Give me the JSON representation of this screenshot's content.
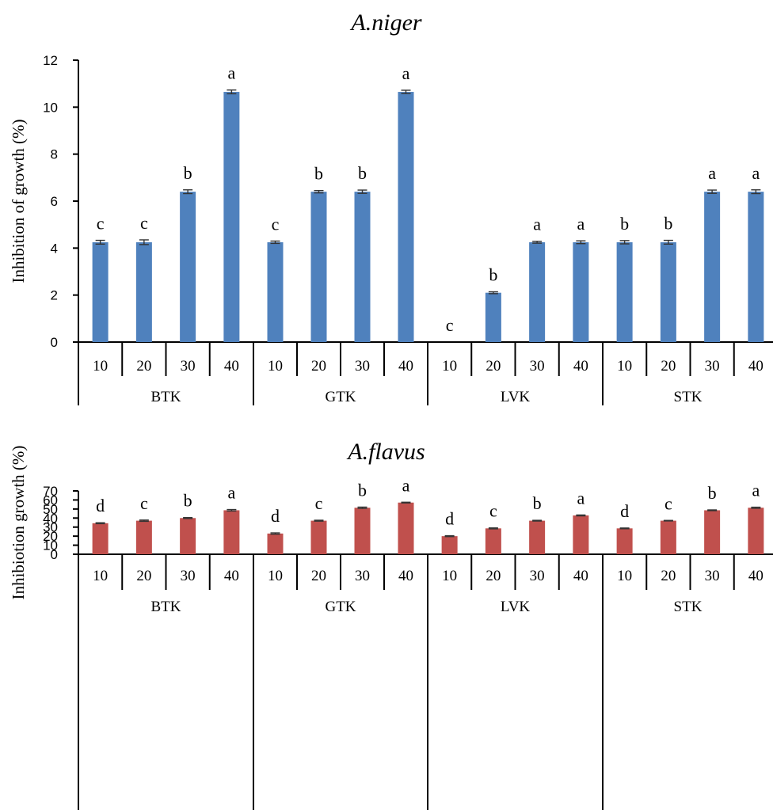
{
  "chart_data": [
    {
      "type": "bar",
      "title": "A.niger",
      "ylabel": "Inhibition of growth (%)",
      "xlabel": "",
      "ylim": [
        0,
        12
      ],
      "yticks": [
        0,
        2,
        4,
        6,
        8,
        10,
        12
      ],
      "groups": [
        "BTK",
        "GTK",
        "LVK",
        "STK"
      ],
      "subcategories": [
        "10",
        "20",
        "30",
        "40"
      ],
      "values": [
        4.25,
        4.25,
        6.4,
        10.65,
        4.25,
        6.4,
        6.4,
        10.65,
        0,
        2.1,
        4.25,
        4.25,
        4.25,
        4.25,
        6.4,
        6.4
      ],
      "errors": [
        0.08,
        0.1,
        0.08,
        0.08,
        0.05,
        0.05,
        0.07,
        0.07,
        0,
        0.04,
        0.04,
        0.06,
        0.07,
        0.08,
        0.07,
        0.08
      ],
      "letters": [
        "c",
        "c",
        "b",
        "a",
        "c",
        "b",
        "b",
        "a",
        "c",
        "b",
        "a",
        "a",
        "b",
        "b",
        "a",
        "a"
      ],
      "color": "#4f81bd",
      "grid": false,
      "legend": "none"
    },
    {
      "type": "bar",
      "title": "A.flavus",
      "ylabel": "Inhibiotion growth (%)",
      "xlabel": "",
      "ylim": [
        0,
        70
      ],
      "yticks": [
        0,
        10,
        20,
        30,
        40,
        50,
        60,
        70
      ],
      "groups": [
        "BTK",
        "GTK",
        "LVK",
        "STK"
      ],
      "subcategories": [
        "10",
        "20",
        "30",
        "40"
      ],
      "values": [
        34.3,
        37.1,
        40.0,
        48.6,
        22.9,
        37.1,
        51.4,
        57.1,
        20.0,
        28.6,
        37.1,
        42.9,
        28.6,
        37.1,
        48.6,
        51.4
      ],
      "errors": [
        0.5,
        0.7,
        0.5,
        0.8,
        0.7,
        0.5,
        0.7,
        0.4,
        0.5,
        0.5,
        0.4,
        0.5,
        0.4,
        0.3,
        0.4,
        0.6
      ],
      "letters": [
        "d",
        "c",
        "b",
        "a",
        "d",
        "c",
        "b",
        "a",
        "d",
        "c",
        "b",
        "a",
        "d",
        "c",
        "b",
        "a"
      ],
      "color": "#c0504d",
      "grid": false,
      "legend": "none"
    }
  ]
}
